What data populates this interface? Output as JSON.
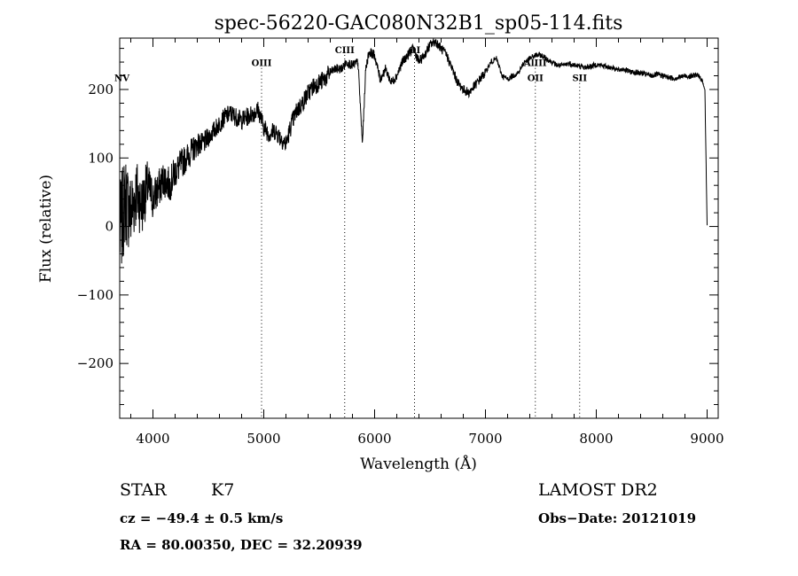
{
  "chart_data": {
    "type": "line",
    "title": "spec-56220-GAC080N32B1_sp05-114.fits",
    "xlabel": "Wavelength (Å)",
    "ylabel": "Flux (relative)",
    "xlim": [
      3700,
      9100
    ],
    "ylim": [
      -280,
      275
    ],
    "xticks": [
      4000,
      5000,
      6000,
      7000,
      8000,
      9000
    ],
    "yticks": [
      -200,
      -100,
      0,
      100,
      200
    ],
    "grid": false,
    "lines": [
      {
        "name": "NV",
        "x": 3720,
        "y": 212
      },
      {
        "name": "OIII",
        "x": 4980,
        "y": 234
      },
      {
        "name": "CIII",
        "x": 5730,
        "y": 253
      },
      {
        "name": "OI",
        "x": 6360,
        "y": 253
      },
      {
        "name": "AlIII",
        "x": 7450,
        "y": 234
      },
      {
        "name": "OII",
        "x": 7450,
        "y": 212
      },
      {
        "name": "SII",
        "x": 7850,
        "y": 212
      }
    ],
    "spectrum": {
      "x": [
        3700,
        3750,
        3800,
        3850,
        3900,
        3950,
        4000,
        4050,
        4100,
        4150,
        4200,
        4250,
        4300,
        4350,
        4400,
        4450,
        4500,
        4550,
        4600,
        4650,
        4700,
        4750,
        4800,
        4850,
        4900,
        4950,
        5000,
        5050,
        5100,
        5150,
        5200,
        5250,
        5300,
        5350,
        5400,
        5450,
        5500,
        5550,
        5600,
        5650,
        5700,
        5750,
        5800,
        5850,
        5890,
        5920,
        5950,
        6000,
        6050,
        6100,
        6150,
        6200,
        6250,
        6300,
        6350,
        6400,
        6450,
        6500,
        6550,
        6600,
        6650,
        6700,
        6750,
        6800,
        6850,
        6900,
        6950,
        7000,
        7050,
        7100,
        7150,
        7200,
        7250,
        7300,
        7350,
        7400,
        7450,
        7500,
        7550,
        7600,
        7650,
        7700,
        7750,
        7800,
        7850,
        7900,
        7950,
        8000,
        8050,
        8100,
        8150,
        8200,
        8250,
        8300,
        8350,
        8400,
        8450,
        8500,
        8550,
        8600,
        8650,
        8700,
        8750,
        8800,
        8850,
        8900,
        8950,
        8980,
        8990,
        9000
      ],
      "y": [
        -10,
        40,
        20,
        50,
        30,
        60,
        40,
        55,
        70,
        60,
        80,
        90,
        100,
        110,
        120,
        120,
        130,
        140,
        150,
        160,
        165,
        160,
        155,
        160,
        165,
        170,
        145,
        135,
        140,
        130,
        120,
        150,
        170,
        180,
        195,
        205,
        210,
        215,
        225,
        230,
        230,
        240,
        235,
        240,
        120,
        230,
        255,
        250,
        215,
        230,
        210,
        220,
        240,
        250,
        260,
        240,
        250,
        265,
        270,
        260,
        250,
        230,
        210,
        200,
        195,
        205,
        215,
        225,
        240,
        245,
        220,
        215,
        220,
        225,
        240,
        245,
        250,
        250,
        245,
        240,
        235,
        235,
        238,
        236,
        234,
        232,
        234,
        236,
        235,
        233,
        232,
        228,
        230,
        226,
        225,
        224,
        222,
        220,
        222,
        220,
        218,
        216,
        218,
        220,
        219,
        222,
        215,
        200,
        100,
        0
      ]
    },
    "noise_seed": 7
  },
  "info": {
    "object_class": "STAR",
    "subclass": "K7",
    "survey": "LAMOST DR2",
    "cz": "cz = −49.4 ± 0.5 km/s",
    "obs_date": "Obs−Date: 20121019",
    "coords": "RA =  80.00350, DEC =  32.20939"
  }
}
